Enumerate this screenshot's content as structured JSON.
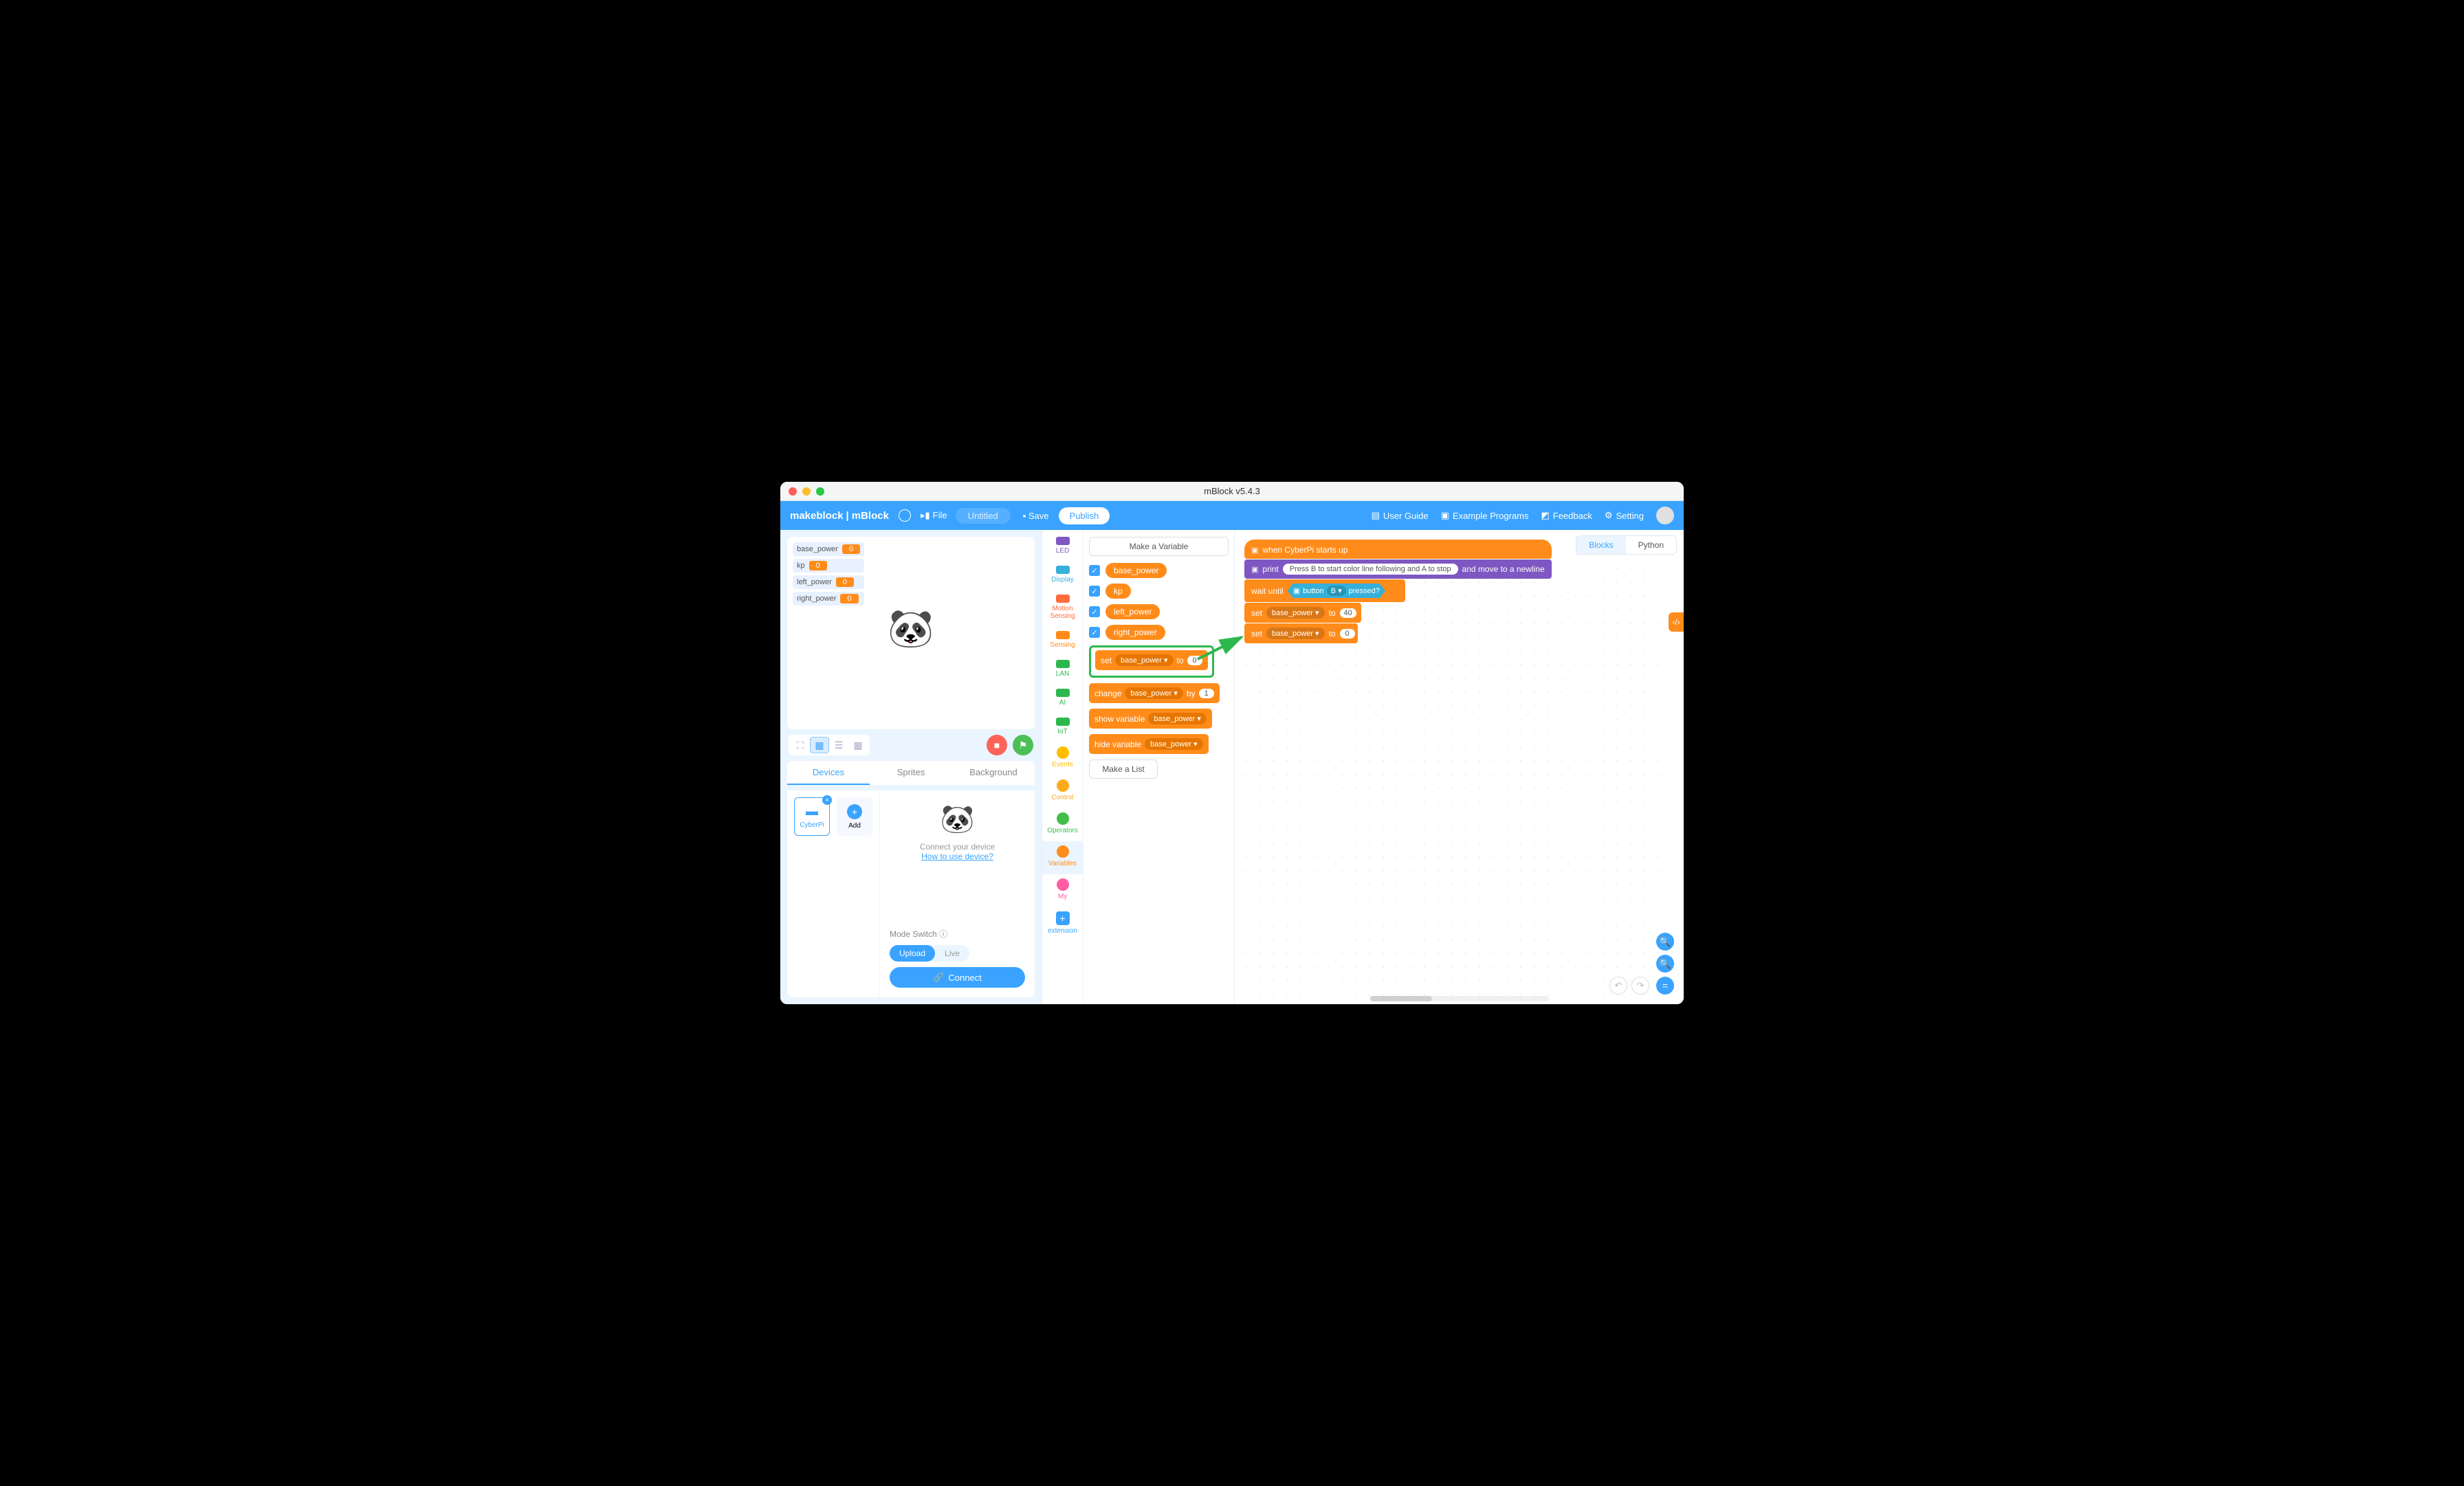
{
  "window": {
    "title": "mBlock v5.4.3"
  },
  "topbar": {
    "brand1": "makeblock",
    "brand2": "mBlock",
    "file": "File",
    "project": "Untitled",
    "save": "Save",
    "publish": "Publish",
    "right": {
      "guide": "User Guide",
      "examples": "Example Programs",
      "feedback": "Feedback",
      "setting": "Setting"
    }
  },
  "stage": {
    "vars": [
      {
        "name": "base_power",
        "value": "0"
      },
      {
        "name": "kp",
        "value": "0"
      },
      {
        "name": "left_power",
        "value": "0"
      },
      {
        "name": "right_power",
        "value": "0"
      }
    ]
  },
  "tabs3": {
    "devices": "Devices",
    "sprites": "Sprites",
    "background": "Background"
  },
  "devices": {
    "cyberpi": "CyberPi",
    "add": "Add",
    "connect_hint": "Connect your device",
    "howto": "How to use device?",
    "mode_switch": "Mode Switch",
    "upload": "Upload",
    "live": "Live",
    "connect": "Connect"
  },
  "categories": [
    {
      "label": "LED",
      "type": "bar",
      "color": "#7e57c2"
    },
    {
      "label": "Display",
      "type": "bar",
      "color": "#34b0d9"
    },
    {
      "label": "Motion Sensing",
      "type": "bar",
      "color": "#ff6b3b"
    },
    {
      "label": "Sensing",
      "type": "bar",
      "color": "#ff8c1a"
    },
    {
      "label": "LAN",
      "type": "bar",
      "color": "#2db84d"
    },
    {
      "label": "AI",
      "type": "bar",
      "color": "#2db84d"
    },
    {
      "label": "IoT",
      "type": "bar",
      "color": "#2db84d"
    },
    {
      "label": "Events",
      "type": "circ",
      "color": "#ffbf00"
    },
    {
      "label": "Control",
      "type": "circ",
      "color": "#ffab19"
    },
    {
      "label": "Operators",
      "type": "circ",
      "color": "#40bf4a"
    },
    {
      "label": "Variables",
      "type": "circ",
      "color": "#ff8c1a",
      "active": true
    },
    {
      "label": "My",
      "type": "circ",
      "color": "#ff5ea3"
    }
  ],
  "ext": "extension",
  "palette": {
    "make_var": "Make a Variable",
    "vars": [
      "base_power",
      "kp",
      "left_power",
      "right_power"
    ],
    "set": {
      "op": "set",
      "var": "base_power ▾",
      "to": "to",
      "val": "0"
    },
    "change": {
      "op": "change",
      "var": "base_power ▾",
      "by": "by",
      "val": "1"
    },
    "show": {
      "op": "show variable",
      "var": "base_power ▾"
    },
    "hide": {
      "op": "hide variable",
      "var": "base_power ▾"
    },
    "make_list": "Make a List"
  },
  "code_tabs": {
    "blocks": "Blocks",
    "python": "Python"
  },
  "script": {
    "hat": "when CyberPi starts up",
    "print": {
      "op": "print",
      "text": "Press B to start color line following and A to stop",
      "tail": "and move to a newline"
    },
    "wait": {
      "op": "wait until",
      "button": "button",
      "b": "B ▾",
      "pressed": "pressed?"
    },
    "set1": {
      "op": "set",
      "var": "base_power ▾",
      "to": "to",
      "val": "40"
    },
    "set2": {
      "op": "set",
      "var": "base_power ▾",
      "to": "to",
      "val": "0"
    }
  },
  "colors": {
    "orange": "#ff8c1a",
    "purple": "#7e57c2",
    "cyan": "#34b0d9",
    "blue": "#39a3ff",
    "green_hl": "#2db84d"
  }
}
